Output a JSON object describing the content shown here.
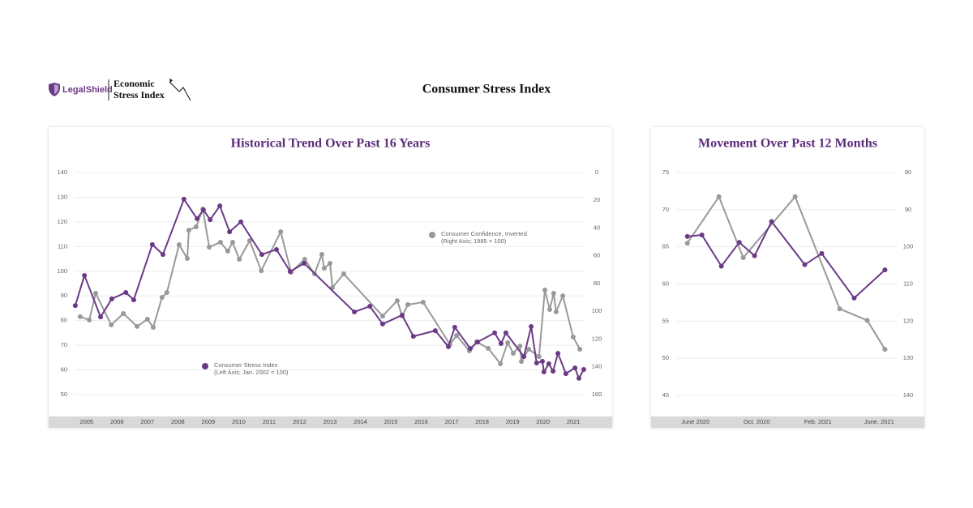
{
  "header": {
    "brand": "LegalShield",
    "product": [
      "Economic",
      "Stress Index"
    ],
    "title": "Consumer Stress Index"
  },
  "chart_data": [
    {
      "type": "line",
      "title": "Historical Trend Over Past 16 Years",
      "xlim": [
        2004.5,
        2021.5
      ],
      "xticks": [
        2005,
        2006,
        2007,
        2008,
        2009,
        2010,
        2011,
        2012,
        2013,
        2014,
        2015,
        2016,
        2017,
        2018,
        2019,
        2020,
        2021
      ],
      "ylim": [
        50,
        140
      ],
      "yticks": [
        50,
        60,
        70,
        80,
        90,
        100,
        110,
        120,
        130,
        140
      ],
      "y2lim": [
        160,
        0
      ],
      "y2ticks": [
        0,
        20,
        40,
        60,
        80,
        100,
        120,
        140,
        160
      ],
      "grid": true,
      "series": [
        {
          "name": "Consumer Confidence, Inverted",
          "legend_note": "(Right Axis; 1985 = 100)",
          "color": "#999999",
          "axis": "y2",
          "x": [
            2004.79,
            2005.09,
            2005.3,
            2005.81,
            2006.21,
            2006.66,
            2007.0,
            2007.19,
            2007.48,
            2007.64,
            2008.04,
            2008.31,
            2008.36,
            2008.6,
            2008.82,
            2009.03,
            2009.4,
            2009.64,
            2009.8,
            2010.02,
            2010.36,
            2010.74,
            2011.38,
            2011.72,
            2012.17,
            2012.49,
            2012.73,
            2012.81,
            2013.0,
            2013.08,
            2013.45,
            2014.73,
            2015.21,
            2015.37,
            2015.56,
            2016.06,
            2016.94,
            2017.16,
            2017.58,
            2017.82,
            2018.2,
            2018.6,
            2018.84,
            2019.02,
            2019.24,
            2019.29,
            2019.53,
            2019.87,
            2020.06,
            2020.22,
            2020.35,
            2020.43,
            2020.65,
            2020.99,
            2021.21
          ],
          "values": [
            103.9,
            106.3,
            87.0,
            109.8,
            101.6,
            110.9,
            105.7,
            111.5,
            89.9,
            86.4,
            52.0,
            61.9,
            41.5,
            39.1,
            26.3,
            53.7,
            50.2,
            56.6,
            50.2,
            62.5,
            49.1,
            70.7,
            42.6,
            71.8,
            62.5,
            73.0,
            59.0,
            68.9,
            65.4,
            82.9,
            73.0,
            103.4,
            92.3,
            103.4,
            95.2,
            93.4,
            123.8,
            117.4,
            128.5,
            122.0,
            126.7,
            137.8,
            122.6,
            130.2,
            125.0,
            136.1,
            127.3,
            132.6,
            84.7,
            98.7,
            87.0,
            100.4,
            88.8,
            118.5,
            127.3
          ]
        },
        {
          "name": "Consumer Stress Index",
          "legend_note": "(Left Axis; Jan. 2002 = 100)",
          "color": "#6b3a87",
          "x": [
            2004.63,
            2004.93,
            2005.46,
            2005.83,
            2006.29,
            2006.55,
            2007.16,
            2007.51,
            2008.2,
            2008.63,
            2008.84,
            2009.06,
            2009.38,
            2009.7,
            2010.07,
            2010.76,
            2011.24,
            2011.69,
            2012.15,
            2013.8,
            2014.31,
            2014.73,
            2015.37,
            2015.74,
            2016.46,
            2016.89,
            2017.1,
            2017.61,
            2017.85,
            2018.41,
            2018.62,
            2018.78,
            2019.37,
            2019.61,
            2019.79,
            2019.98,
            2020.03,
            2020.19,
            2020.33,
            2020.49,
            2020.75,
            2021.05,
            2021.18,
            2021.34
          ],
          "values": [
            86.1,
            98.3,
            81.5,
            88.8,
            91.4,
            88.4,
            110.8,
            106.8,
            129.2,
            121.3,
            124.9,
            120.9,
            126.5,
            116.0,
            120.0,
            106.8,
            108.8,
            99.9,
            103.2,
            83.5,
            85.8,
            78.6,
            82.2,
            73.6,
            75.9,
            69.4,
            77.3,
            68.7,
            71.3,
            75.0,
            70.7,
            75.0,
            65.4,
            77.6,
            62.8,
            63.5,
            59.2,
            62.5,
            59.5,
            66.7,
            58.5,
            60.8,
            56.6,
            60.2
          ]
        }
      ]
    },
    {
      "type": "line",
      "title": "Movement Over Past 12 Months",
      "xlim": [
        -2,
        14
      ],
      "xticks": [
        {
          "value": 0,
          "label": "June 2020"
        },
        {
          "value": 4,
          "label": "Oct. 2020"
        },
        {
          "value": 8,
          "label": "Feb. 2021"
        },
        {
          "value": 12,
          "label": "June. 2021"
        }
      ],
      "ylim": [
        45,
        75
      ],
      "yticks": [
        45,
        50,
        55,
        60,
        65,
        70,
        75
      ],
      "y2lim": [
        140,
        80
      ],
      "y2ticks": [
        80,
        90,
        100,
        110,
        120,
        130,
        140
      ],
      "grid": true,
      "series": [
        {
          "color": "#999999",
          "axis": "y2",
          "x": [
            -0.53,
            1.53,
            3.12,
            6.51,
            9.42,
            11.22,
            12.38
          ],
          "values": [
            99.0,
            86.5,
            102.9,
            86.5,
            116.7,
            119.8,
            127.6
          ]
        },
        {
          "color": "#6b3a87",
          "x": [
            -0.53,
            0.42,
            1.69,
            2.86,
            3.86,
            4.97,
            7.14,
            8.25,
            10.37,
            12.38
          ],
          "values": [
            66.4,
            66.6,
            62.4,
            65.6,
            63.8,
            68.4,
            62.6,
            64.1,
            58.1,
            61.9
          ]
        }
      ]
    }
  ]
}
